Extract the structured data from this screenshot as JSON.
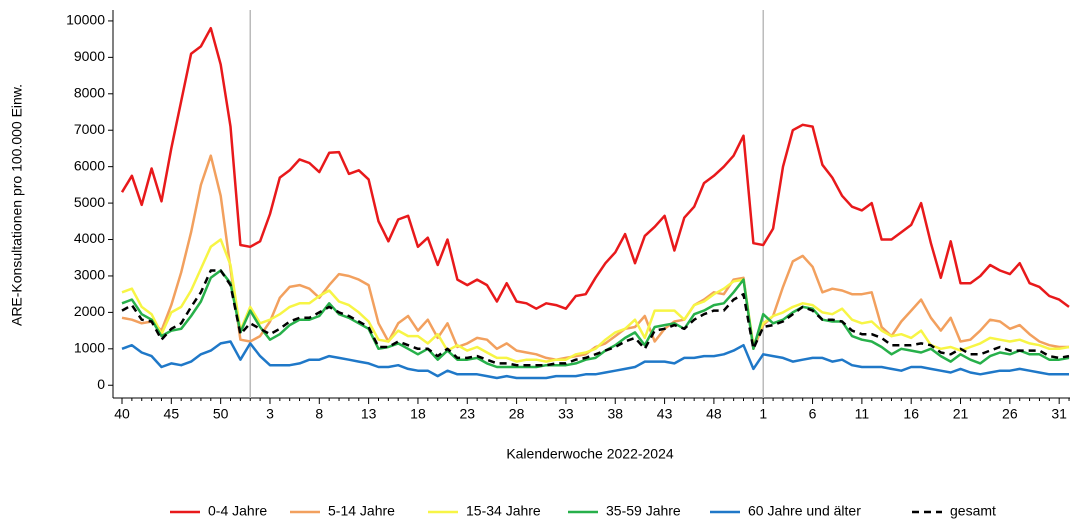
{
  "chart_data": {
    "type": "line",
    "y_label": "ARE-Konsultationen pro 100.000 Einw.",
    "x_label": "Kalenderwoche 2022-2024",
    "categories": [
      "40",
      null,
      null,
      null,
      null,
      "45",
      null,
      null,
      null,
      null,
      "50",
      null,
      null,
      null,
      null,
      "3",
      null,
      null,
      null,
      null,
      "8",
      null,
      null,
      null,
      null,
      "13",
      null,
      null,
      null,
      null,
      "18",
      null,
      null,
      null,
      null,
      "23",
      null,
      null,
      null,
      null,
      "28",
      null,
      null,
      null,
      null,
      "33",
      null,
      null,
      null,
      null,
      "38",
      null,
      null,
      null,
      null,
      "43",
      null,
      null,
      null,
      null,
      "48",
      null,
      null,
      null,
      null,
      "1",
      null,
      null,
      null,
      null,
      "6",
      null,
      null,
      null,
      null,
      "11",
      null,
      null,
      null,
      null,
      "16",
      null,
      null,
      null,
      null,
      "21",
      null,
      null,
      null,
      null,
      "26",
      null,
      null,
      null,
      null,
      "31",
      null
    ],
    "vlines_at": [
      13,
      65
    ],
    "ylim": [
      -350,
      10300
    ],
    "yticks": [
      0,
      1000,
      2000,
      3000,
      4000,
      5000,
      6000,
      7000,
      8000,
      9000,
      10000
    ],
    "series": [
      {
        "name": "0-4 Jahre",
        "color": "#e8191b",
        "style": "solid",
        "values": [
          5300,
          5750,
          4950,
          5950,
          5050,
          6500,
          7800,
          9100,
          9300,
          9800,
          8800,
          7100,
          3850,
          3800,
          3950,
          4700,
          5700,
          5900,
          6200,
          6100,
          5850,
          6380,
          6400,
          5800,
          5900,
          5650,
          4500,
          3950,
          4550,
          4650,
          3800,
          4050,
          3300,
          4000,
          2900,
          2750,
          2900,
          2750,
          2300,
          2800,
          2300,
          2250,
          2100,
          2250,
          2200,
          2100,
          2450,
          2500,
          2950,
          3350,
          3650,
          4150,
          3350,
          4100,
          4350,
          4650,
          3700,
          4600,
          4900,
          5550,
          5750,
          6000,
          6300,
          6850,
          3900,
          3850,
          4300,
          6000,
          7000,
          7150,
          7100,
          6050,
          5700,
          5200,
          4900,
          4800,
          5000,
          4000,
          4000,
          4200,
          4400,
          5000,
          3900,
          2950,
          3950,
          2800,
          2800,
          3000,
          3300,
          3150,
          3050,
          3350,
          2800,
          2700,
          2450,
          2350,
          2150
        ]
      },
      {
        "name": "5-14 Jahre",
        "color": "#f2a05e",
        "style": "solid",
        "values": [
          1850,
          1800,
          1700,
          1750,
          1500,
          2200,
          3100,
          4200,
          5500,
          6300,
          5200,
          3200,
          1250,
          1200,
          1350,
          1750,
          2400,
          2700,
          2750,
          2650,
          2400,
          2750,
          3050,
          3000,
          2900,
          2750,
          1700,
          1200,
          1700,
          1900,
          1500,
          1800,
          1300,
          1700,
          1050,
          1150,
          1300,
          1250,
          1000,
          1150,
          950,
          900,
          850,
          750,
          700,
          750,
          800,
          850,
          1050,
          1150,
          1350,
          1550,
          1600,
          1900,
          1200,
          1550,
          1750,
          1800,
          2200,
          2350,
          2550,
          2500,
          2900,
          2950,
          1000,
          1650,
          1900,
          2700,
          3400,
          3550,
          3250,
          2550,
          2650,
          2600,
          2500,
          2500,
          2550,
          1600,
          1350,
          1750,
          2050,
          2350,
          1850,
          1500,
          1850,
          1200,
          1250,
          1500,
          1800,
          1750,
          1550,
          1650,
          1400,
          1200,
          1100,
          1050,
          1050
        ]
      },
      {
        "name": "15-34 Jahre",
        "color": "#f7f545",
        "style": "solid",
        "values": [
          2550,
          2650,
          2150,
          1950,
          1400,
          2000,
          2150,
          2600,
          3200,
          3800,
          4000,
          3300,
          1500,
          2150,
          1700,
          1800,
          1950,
          2150,
          2250,
          2250,
          2450,
          2600,
          2300,
          2200,
          2000,
          1750,
          1250,
          1200,
          1500,
          1350,
          1350,
          1150,
          1400,
          950,
          1100,
          950,
          1050,
          900,
          750,
          750,
          650,
          700,
          700,
          650,
          700,
          700,
          850,
          900,
          1000,
          1250,
          1450,
          1550,
          1800,
          1300,
          2050,
          2050,
          2050,
          1800,
          2200,
          2300,
          2500,
          2650,
          2850,
          2900,
          1100,
          1700,
          1900,
          2000,
          2150,
          2250,
          2200,
          2000,
          1950,
          2100,
          1800,
          1700,
          1750,
          1500,
          1350,
          1400,
          1300,
          1500,
          1100,
          1000,
          1050,
          950,
          1050,
          1150,
          1300,
          1250,
          1200,
          1250,
          1150,
          1100,
          1000,
          1000,
          1050
        ]
      },
      {
        "name": "35-59 Jahre",
        "color": "#27b04a",
        "style": "solid",
        "values": [
          2250,
          2350,
          1950,
          1800,
          1350,
          1500,
          1550,
          1900,
          2300,
          2950,
          3150,
          2800,
          1450,
          2050,
          1600,
          1250,
          1400,
          1650,
          1800,
          1800,
          1900,
          2250,
          1950,
          1850,
          1700,
          1550,
          1000,
          1050,
          1150,
          1000,
          850,
          1000,
          700,
          950,
          700,
          700,
          750,
          600,
          500,
          500,
          500,
          500,
          500,
          550,
          550,
          550,
          600,
          700,
          750,
          950,
          1100,
          1300,
          1450,
          1100,
          1600,
          1650,
          1700,
          1550,
          1950,
          2050,
          2200,
          2250,
          2550,
          2900,
          1000,
          1950,
          1700,
          1800,
          2000,
          2150,
          2100,
          1800,
          1750,
          1750,
          1350,
          1250,
          1200,
          1050,
          850,
          1000,
          950,
          900,
          1000,
          800,
          650,
          850,
          700,
          600,
          800,
          900,
          850,
          950,
          850,
          850,
          700,
          700,
          750
        ]
      },
      {
        "name": "60 Jahre und älter",
        "color": "#1f78c8",
        "style": "solid",
        "values": [
          1000,
          1100,
          900,
          800,
          500,
          600,
          550,
          650,
          850,
          950,
          1150,
          1200,
          700,
          1150,
          800,
          550,
          550,
          550,
          600,
          700,
          700,
          800,
          750,
          700,
          650,
          600,
          500,
          500,
          550,
          450,
          400,
          400,
          250,
          400,
          300,
          300,
          300,
          250,
          200,
          250,
          200,
          200,
          200,
          200,
          250,
          250,
          250,
          300,
          300,
          350,
          400,
          450,
          500,
          650,
          650,
          650,
          600,
          750,
          750,
          800,
          800,
          850,
          950,
          1100,
          450,
          850,
          800,
          750,
          650,
          700,
          750,
          750,
          650,
          700,
          550,
          500,
          500,
          500,
          450,
          400,
          500,
          500,
          450,
          400,
          350,
          450,
          350,
          300,
          350,
          400,
          400,
          450,
          400,
          350,
          300,
          300,
          300
        ]
      },
      {
        "name": "gesamt",
        "color": "#000000",
        "style": "dashed",
        "values": [
          2050,
          2200,
          1800,
          1750,
          1250,
          1550,
          1700,
          2150,
          2550,
          3150,
          3150,
          2750,
          1400,
          1700,
          1550,
          1400,
          1550,
          1750,
          1850,
          1850,
          2000,
          2150,
          2000,
          1900,
          1750,
          1600,
          1050,
          1050,
          1200,
          1100,
          1000,
          1000,
          800,
          1000,
          750,
          750,
          800,
          700,
          600,
          600,
          550,
          550,
          550,
          550,
          600,
          600,
          700,
          750,
          850,
          950,
          1050,
          1200,
          1300,
          1000,
          1500,
          1550,
          1650,
          1550,
          1800,
          1950,
          2050,
          2050,
          2350,
          2500,
          1000,
          1600,
          1650,
          1750,
          1950,
          2150,
          2050,
          1800,
          1800,
          1750,
          1500,
          1400,
          1400,
          1300,
          1100,
          1100,
          1100,
          1150,
          1100,
          900,
          850,
          1000,
          850,
          850,
          950,
          1050,
          950,
          950,
          950,
          950,
          800,
          750,
          800
        ]
      }
    ]
  }
}
